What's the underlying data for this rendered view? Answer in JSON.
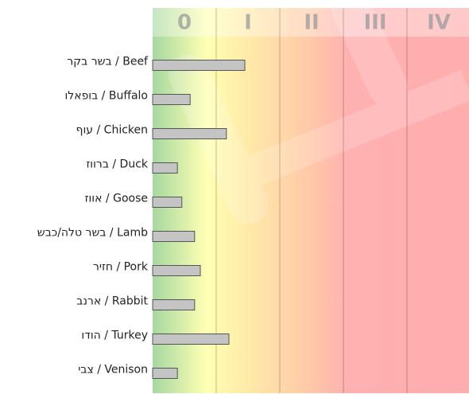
{
  "chart_data": {
    "type": "bar",
    "orientation": "horizontal",
    "categories": [
      "בשר בקר / Beef",
      "בופאלו / Buffalo",
      "עוף / Chicken",
      "ברווז / Duck",
      "אווז / Goose",
      "בשר טלה/כבש / Lamb",
      "חזיר / Pork",
      "ארנב / Rabbit",
      "הודו / Turkey",
      "צבי / Venison"
    ],
    "values": [
      1.45,
      0.59,
      1.16,
      0.39,
      0.46,
      0.66,
      0.75,
      0.66,
      1.2,
      0.39
    ],
    "color": "#c4c4c4",
    "xlim": [
      0,
      5
    ],
    "xticks": [
      {
        "value": 0,
        "label": "0"
      },
      {
        "value": 1,
        "label": "I"
      },
      {
        "value": 2,
        "label": "II"
      },
      {
        "value": 3,
        "label": "III"
      },
      {
        "value": 4,
        "label": "IV"
      }
    ],
    "grid": true
  }
}
